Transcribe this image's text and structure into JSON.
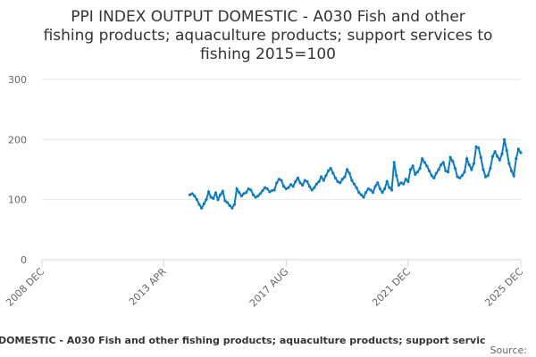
{
  "chart_data": {
    "type": "line",
    "title": [
      "PPI INDEX OUTPUT DOMESTIC - A030 Fish and other",
      "fishing products; aquaculture products; support services to",
      "fishing 2015=100"
    ],
    "caption": "DOMESTIC - A030 Fish and other fishing products; aquaculture products; support servic",
    "source": "Source:",
    "ylim": [
      0,
      300
    ],
    "yticks": [
      0,
      100,
      200,
      300
    ],
    "grid": true,
    "xlim": [
      "2008 DEC",
      "2025 DEC"
    ],
    "xticks": [
      "2008 DEC",
      "2013 APR",
      "2017 AUG",
      "2021 DEC",
      "2025 DEC"
    ],
    "start": "2014 MAR",
    "series": [
      {
        "name": "PPI",
        "color": "#0e7bbf",
        "values": [
          108,
          110,
          106,
          100,
          92,
          86,
          93,
          100,
          113,
          104,
          102,
          111,
          100,
          108,
          114,
          98,
          95,
          90,
          86,
          92,
          118,
          112,
          106,
          110,
          112,
          118,
          116,
          108,
          104,
          106,
          110,
          115,
          120,
          118,
          113,
          115,
          116,
          128,
          134,
          132,
          122,
          118,
          120,
          125,
          122,
          130,
          136,
          128,
          124,
          132,
          130,
          122,
          116,
          120,
          126,
          130,
          138,
          132,
          140,
          148,
          152,
          144,
          136,
          130,
          128,
          134,
          138,
          150,
          144,
          132,
          126,
          120,
          112,
          108,
          104,
          112,
          118,
          116,
          112,
          122,
          128,
          118,
          112,
          118,
          130,
          120,
          116,
          162,
          140,
          124,
          128,
          126,
          134,
          130,
          150,
          156,
          142,
          146,
          152,
          168,
          162,
          156,
          148,
          140,
          136,
          144,
          150,
          158,
          162,
          148,
          146,
          170,
          164,
          152,
          138,
          136,
          140,
          146,
          168,
          158,
          150,
          160,
          188,
          186,
          170,
          150,
          138,
          140,
          152,
          172,
          180,
          172,
          166,
          176,
          200,
          182,
          160,
          148,
          140,
          168,
          184,
          178
        ]
      }
    ]
  }
}
